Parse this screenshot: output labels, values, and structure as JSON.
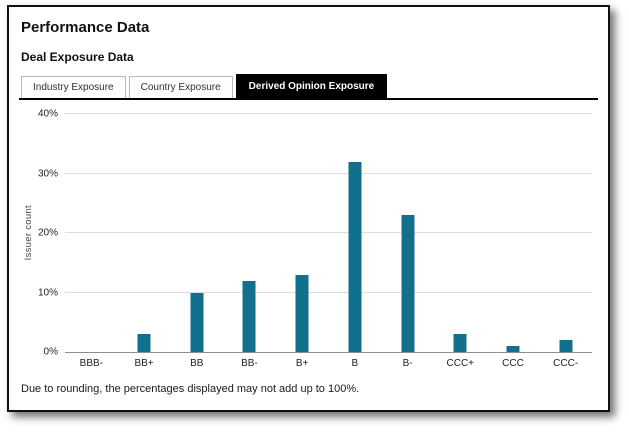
{
  "header": {
    "title": "Performance Data",
    "subtitle": "Deal Exposure Data"
  },
  "tabs": [
    {
      "label": "Industry Exposure",
      "active": false
    },
    {
      "label": "Country Exposure",
      "active": false
    },
    {
      "label": "Derived Opinion Exposure",
      "active": true
    }
  ],
  "chart_data": {
    "type": "bar",
    "title": "",
    "categories": [
      "BBB-",
      "BB+",
      "BB",
      "BB-",
      "B+",
      "B",
      "B-",
      "CCC+",
      "CCC",
      "CCC-"
    ],
    "values": [
      0,
      3,
      10,
      12,
      13,
      32,
      23,
      3,
      1,
      2
    ],
    "xlabel": "",
    "ylabel": "Issuer count",
    "ylim": [
      0,
      40
    ],
    "ytick_step": 10,
    "ytick_suffix": "%",
    "grid": true,
    "legend": "none",
    "bar_color": "#11708c"
  },
  "footnote": "Due to rounding, the percentages displayed may not add up to 100%."
}
